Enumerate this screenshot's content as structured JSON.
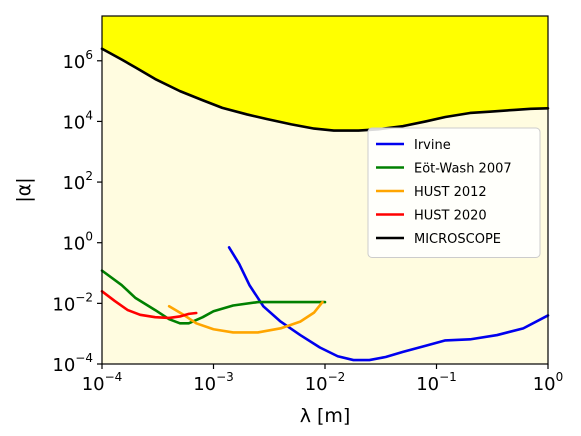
{
  "chart_data": {
    "type": "line",
    "xlabel": "λ [m]",
    "ylabel": "|α|",
    "x_scale": "log",
    "y_scale": "log",
    "xlim": [
      0.0001,
      1
    ],
    "ylim": [
      0.0001,
      30000000
    ],
    "x_ticks": [
      {
        "value": 0.0001,
        "base": "10",
        "exp": "−4"
      },
      {
        "value": 0.001,
        "base": "10",
        "exp": "−3"
      },
      {
        "value": 0.01,
        "base": "10",
        "exp": "−2"
      },
      {
        "value": 0.1,
        "base": "10",
        "exp": "−1"
      },
      {
        "value": 1,
        "base": "10",
        "exp": "0"
      }
    ],
    "y_ticks": [
      {
        "value": 0.0001,
        "base": "10",
        "exp": "−4"
      },
      {
        "value": 0.01,
        "base": "10",
        "exp": "−2"
      },
      {
        "value": 1,
        "base": "10",
        "exp": "0"
      },
      {
        "value": 100,
        "base": "10",
        "exp": "2"
      },
      {
        "value": 10000,
        "base": "10",
        "exp": "4"
      },
      {
        "value": 1000000,
        "base": "10",
        "exp": "6"
      }
    ],
    "grid": false,
    "legend_position": "center-right",
    "fills": {
      "excluded_color": "#ffff00",
      "allowed_color": "#fffce0"
    },
    "series": [
      {
        "name": "Irvine",
        "color": "#0000ee",
        "x": [
          0.00138,
          0.0017,
          0.0021,
          0.0028,
          0.004,
          0.006,
          0.009,
          0.013,
          0.018,
          0.025,
          0.035,
          0.05,
          0.08,
          0.12,
          0.2,
          0.35,
          0.6,
          1.0
        ],
        "y": [
          0.7,
          0.2,
          0.04,
          0.008,
          0.0025,
          0.0009,
          0.00035,
          0.00018,
          0.000135,
          0.000135,
          0.00017,
          0.00025,
          0.0004,
          0.0006,
          0.00065,
          0.0009,
          0.0015,
          0.004
        ]
      },
      {
        "name": "Eöt-Wash 2007",
        "color": "#008000",
        "x": [
          0.0001,
          0.00015,
          0.0002,
          0.0003,
          0.0004,
          0.0005,
          0.0006,
          0.0008,
          0.001,
          0.0015,
          0.0025,
          0.004,
          0.006,
          0.01
        ],
        "y": [
          0.12,
          0.04,
          0.015,
          0.006,
          0.003,
          0.0022,
          0.0022,
          0.0035,
          0.0055,
          0.0085,
          0.011,
          0.011,
          0.011,
          0.011
        ]
      },
      {
        "name": "HUST 2012",
        "color": "#ffa500",
        "x": [
          0.0004,
          0.00055,
          0.0007,
          0.001,
          0.0015,
          0.0025,
          0.004,
          0.006,
          0.008,
          0.0095
        ],
        "y": [
          0.008,
          0.004,
          0.0022,
          0.0014,
          0.0011,
          0.0011,
          0.0015,
          0.0025,
          0.005,
          0.011
        ]
      },
      {
        "name": "HUST 2020",
        "color": "#ff0000",
        "x": [
          0.0001,
          0.00013,
          0.00017,
          0.00022,
          0.0003,
          0.0004,
          0.0005,
          0.0006,
          0.0007
        ],
        "y": [
          0.025,
          0.012,
          0.006,
          0.0042,
          0.0035,
          0.0033,
          0.0037,
          0.0045,
          0.0048
        ]
      },
      {
        "name": "MICROSCOPE",
        "color": "#000000",
        "x": [
          0.0001,
          0.00015,
          0.0002,
          0.0003,
          0.0005,
          0.0008,
          0.0012,
          0.002,
          0.003,
          0.005,
          0.008,
          0.012,
          0.02,
          0.03,
          0.05,
          0.08,
          0.12,
          0.2,
          0.3,
          0.5,
          0.7,
          1.0
        ],
        "y": [
          2500000,
          1100000,
          600000,
          250000,
          100000,
          50000,
          28000,
          17000,
          12000,
          8000,
          5800,
          5000,
          5000,
          5500,
          7000,
          10000,
          14000,
          19000,
          21000,
          24000,
          26000,
          27000
        ]
      }
    ]
  }
}
